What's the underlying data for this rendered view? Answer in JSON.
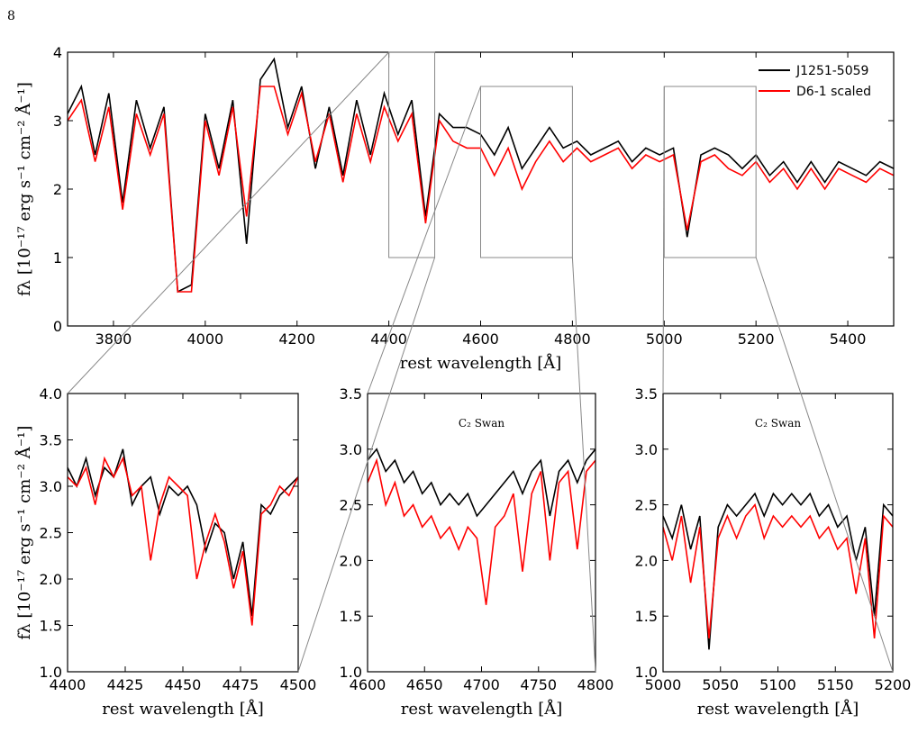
{
  "page_number": "8",
  "chart_data": [
    {
      "type": "line",
      "x_label": "rest wavelength [Å]",
      "y_label": "fλ [10⁻¹⁷ erg s⁻¹ cm⁻² Å⁻¹]",
      "x": [
        3700,
        3730,
        3760,
        3790,
        3820,
        3850,
        3880,
        3910,
        3940,
        3970,
        4000,
        4030,
        4060,
        4090,
        4120,
        4150,
        4180,
        4210,
        4240,
        4270,
        4300,
        4330,
        4360,
        4390,
        4420,
        4450,
        4480,
        4510,
        4540,
        4570,
        4600,
        4630,
        4660,
        4690,
        4720,
        4750,
        4780,
        4810,
        4840,
        4870,
        4900,
        4930,
        4960,
        4990,
        5020,
        5050,
        5080,
        5110,
        5140,
        5170,
        5200,
        5230,
        5260,
        5290,
        5320,
        5350,
        5380,
        5410,
        5440,
        5470,
        5500
      ],
      "series": [
        {
          "name": "J1251-5059",
          "color": "#000000",
          "values": [
            3.1,
            3.5,
            2.5,
            3.4,
            1.8,
            3.3,
            2.6,
            3.2,
            0.5,
            0.6,
            3.1,
            2.3,
            3.3,
            1.2,
            3.6,
            3.9,
            2.9,
            3.5,
            2.3,
            3.2,
            2.2,
            3.3,
            2.5,
            3.4,
            2.8,
            3.3,
            1.6,
            3.1,
            2.9,
            2.9,
            2.8,
            2.5,
            2.9,
            2.3,
            2.6,
            2.9,
            2.6,
            2.7,
            2.5,
            2.6,
            2.7,
            2.4,
            2.6,
            2.5,
            2.6,
            1.3,
            2.5,
            2.6,
            2.5,
            2.3,
            2.5,
            2.2,
            2.4,
            2.1,
            2.4,
            2.1,
            2.4,
            2.3,
            2.2,
            2.4,
            2.3
          ]
        },
        {
          "name": "D6-1 scaled",
          "color": "#ff0000",
          "values": [
            3.0,
            3.3,
            2.4,
            3.2,
            1.7,
            3.1,
            2.5,
            3.1,
            0.5,
            0.5,
            3.0,
            2.2,
            3.2,
            1.6,
            3.5,
            3.5,
            2.8,
            3.4,
            2.4,
            3.1,
            2.1,
            3.1,
            2.4,
            3.2,
            2.7,
            3.1,
            1.5,
            3.0,
            2.7,
            2.6,
            2.6,
            2.2,
            2.6,
            2.0,
            2.4,
            2.7,
            2.4,
            2.6,
            2.4,
            2.5,
            2.6,
            2.3,
            2.5,
            2.4,
            2.5,
            1.4,
            2.4,
            2.5,
            2.3,
            2.2,
            2.4,
            2.1,
            2.3,
            2.0,
            2.3,
            2.0,
            2.3,
            2.2,
            2.1,
            2.3,
            2.2
          ]
        }
      ],
      "xlim": [
        3700,
        5500
      ],
      "ylim": [
        0,
        4
      ],
      "xticks": [
        3800,
        4000,
        4200,
        4400,
        4600,
        4800,
        5000,
        5200,
        5400
      ],
      "yticks": [
        0,
        1,
        2,
        3,
        4
      ],
      "legend": "upper right"
    },
    {
      "type": "line",
      "x_label": "rest wavelength [Å]",
      "y_label": "fλ [10⁻¹⁷ erg s⁻¹ cm⁻² Å⁻¹]",
      "x": [
        4400,
        4404,
        4408,
        4412,
        4416,
        4420,
        4424,
        4428,
        4432,
        4436,
        4440,
        4444,
        4448,
        4452,
        4456,
        4460,
        4464,
        4468,
        4472,
        4476,
        4480,
        4484,
        4488,
        4492,
        4496,
        4500
      ],
      "series": [
        {
          "color": "#000000",
          "values": [
            3.2,
            3.0,
            3.3,
            2.9,
            3.2,
            3.1,
            3.4,
            2.8,
            3.0,
            3.1,
            2.7,
            3.0,
            2.9,
            3.0,
            2.8,
            2.3,
            2.6,
            2.5,
            2.0,
            2.4,
            1.6,
            2.8,
            2.7,
            2.9,
            3.0,
            3.1
          ]
        },
        {
          "color": "#ff0000",
          "values": [
            3.1,
            3.0,
            3.2,
            2.8,
            3.3,
            3.1,
            3.3,
            2.9,
            3.0,
            2.2,
            2.8,
            3.1,
            3.0,
            2.9,
            2.0,
            2.4,
            2.7,
            2.4,
            1.9,
            2.3,
            1.5,
            2.7,
            2.8,
            3.0,
            2.9,
            3.1
          ]
        }
      ],
      "xlim": [
        4400,
        4500
      ],
      "ylim": [
        1,
        4
      ],
      "xticks": [
        4400,
        4425,
        4450,
        4475,
        4500
      ],
      "yticks": [
        {
          "value": 1,
          "label": "1.0"
        },
        1.5,
        {
          "value": 2,
          "label": "2.0"
        },
        2.5,
        {
          "value": 3,
          "label": "3.0"
        },
        3.5,
        {
          "value": 4,
          "label": "4.0"
        }
      ]
    },
    {
      "type": "line",
      "x_label": "rest wavelength [Å]",
      "annotation": "C₂ Swan",
      "x": [
        4600,
        4608,
        4616,
        4624,
        4632,
        4640,
        4648,
        4656,
        4664,
        4672,
        4680,
        4688,
        4696,
        4704,
        4712,
        4720,
        4728,
        4736,
        4744,
        4752,
        4760,
        4768,
        4776,
        4784,
        4792,
        4800
      ],
      "series": [
        {
          "color": "#000000",
          "values": [
            2.9,
            3.0,
            2.8,
            2.9,
            2.7,
            2.8,
            2.6,
            2.7,
            2.5,
            2.6,
            2.5,
            2.6,
            2.4,
            2.5,
            2.6,
            2.7,
            2.8,
            2.6,
            2.8,
            2.9,
            2.4,
            2.8,
            2.9,
            2.7,
            2.9,
            3.0
          ]
        },
        {
          "color": "#ff0000",
          "values": [
            2.7,
            2.9,
            2.5,
            2.7,
            2.4,
            2.5,
            2.3,
            2.4,
            2.2,
            2.3,
            2.1,
            2.3,
            2.2,
            1.6,
            2.3,
            2.4,
            2.6,
            1.9,
            2.6,
            2.8,
            2.0,
            2.7,
            2.8,
            2.1,
            2.8,
            2.9
          ]
        }
      ],
      "xlim": [
        4600,
        4800
      ],
      "ylim": [
        1,
        3.5
      ],
      "xticks": [
        4600,
        4650,
        4700,
        4750,
        4800
      ],
      "yticks": [
        {
          "value": 1,
          "label": "1.0"
        },
        1.5,
        {
          "value": 2,
          "label": "2.0"
        },
        2.5,
        {
          "value": 3,
          "label": "3.0"
        },
        3.5
      ]
    },
    {
      "type": "line",
      "x_label": "rest wavelength [Å]",
      "annotation": "C₂ Swan",
      "x": [
        5000,
        5008,
        5016,
        5024,
        5032,
        5040,
        5048,
        5056,
        5064,
        5072,
        5080,
        5088,
        5096,
        5104,
        5112,
        5120,
        5128,
        5136,
        5144,
        5152,
        5160,
        5168,
        5176,
        5184,
        5192,
        5200
      ],
      "series": [
        {
          "color": "#000000",
          "values": [
            2.4,
            2.2,
            2.5,
            2.1,
            2.4,
            1.2,
            2.3,
            2.5,
            2.4,
            2.5,
            2.6,
            2.4,
            2.6,
            2.5,
            2.6,
            2.5,
            2.6,
            2.4,
            2.5,
            2.3,
            2.4,
            2.0,
            2.3,
            1.5,
            2.5,
            2.4
          ]
        },
        {
          "color": "#ff0000",
          "values": [
            2.3,
            2.0,
            2.4,
            1.8,
            2.3,
            1.3,
            2.2,
            2.4,
            2.2,
            2.4,
            2.5,
            2.2,
            2.4,
            2.3,
            2.4,
            2.3,
            2.4,
            2.2,
            2.3,
            2.1,
            2.2,
            1.7,
            2.2,
            1.3,
            2.4,
            2.3
          ]
        }
      ],
      "xlim": [
        5000,
        5200
      ],
      "ylim": [
        1,
        3.5
      ],
      "xticks": [
        5000,
        5050,
        5100,
        5150,
        5200
      ],
      "yticks": [
        {
          "value": 1,
          "label": "1.0"
        },
        1.5,
        {
          "value": 2,
          "label": "2.0"
        },
        2.5,
        {
          "value": 3,
          "label": "3.0"
        },
        3.5
      ]
    }
  ]
}
